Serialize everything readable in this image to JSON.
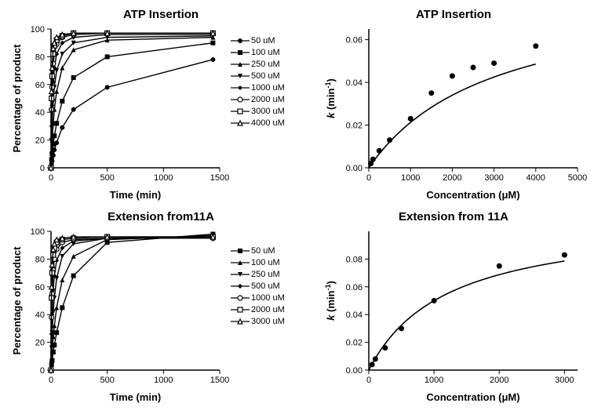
{
  "panels": {
    "tl": {
      "title": "ATP Insertion",
      "type": "line",
      "xlabel": "Time (min)",
      "ylabel": "Percentage of product",
      "xlim": [
        0,
        1500
      ],
      "ylim": [
        0,
        100
      ],
      "xtick_step": 500,
      "ytick_step": 20,
      "title_fontsize": 15,
      "label_fontsize": 13,
      "background_color": "#ffffff",
      "line_color": "#000000",
      "marker_size": 5,
      "series": [
        {
          "label": "50 uM",
          "marker": "circle-filled",
          "data": [
            [
              0,
              0
            ],
            [
              5,
              3
            ],
            [
              10,
              5
            ],
            [
              20,
              9
            ],
            [
              30,
              13
            ],
            [
              50,
              18
            ],
            [
              100,
              29
            ],
            [
              200,
              42
            ],
            [
              500,
              58
            ],
            [
              1440,
              78
            ]
          ]
        },
        {
          "label": "100 uM",
          "marker": "square-filled",
          "data": [
            [
              0,
              0
            ],
            [
              5,
              6
            ],
            [
              10,
              10
            ],
            [
              20,
              17
            ],
            [
              30,
              23
            ],
            [
              50,
              32
            ],
            [
              100,
              48
            ],
            [
              200,
              65
            ],
            [
              500,
              80
            ],
            [
              1440,
              90
            ]
          ]
        },
        {
          "label": "250 uM",
          "marker": "triangle-filled",
          "data": [
            [
              0,
              0
            ],
            [
              5,
              12
            ],
            [
              10,
              20
            ],
            [
              20,
              32
            ],
            [
              30,
              42
            ],
            [
              50,
              55
            ],
            [
              100,
              72
            ],
            [
              200,
              85
            ],
            [
              500,
              92
            ],
            [
              1440,
              94
            ]
          ]
        },
        {
          "label": "500 uM",
          "marker": "inverted-triangle-filled",
          "data": [
            [
              0,
              0
            ],
            [
              5,
              20
            ],
            [
              10,
              32
            ],
            [
              20,
              48
            ],
            [
              30,
              58
            ],
            [
              50,
              70
            ],
            [
              100,
              82
            ],
            [
              200,
              90
            ],
            [
              500,
              94
            ],
            [
              1440,
              95
            ]
          ]
        },
        {
          "label": "1000 uM",
          "marker": "diamond-filled",
          "data": [
            [
              0,
              0
            ],
            [
              5,
              30
            ],
            [
              10,
              45
            ],
            [
              20,
              62
            ],
            [
              30,
              72
            ],
            [
              50,
              82
            ],
            [
              100,
              90
            ],
            [
              200,
              94
            ],
            [
              500,
              96
            ],
            [
              1440,
              96
            ]
          ]
        },
        {
          "label": "2000 uM",
          "marker": "circle-open",
          "data": [
            [
              0,
              0
            ],
            [
              5,
              42
            ],
            [
              10,
              58
            ],
            [
              20,
              75
            ],
            [
              30,
              82
            ],
            [
              50,
              89
            ],
            [
              100,
              94
            ],
            [
              200,
              96
            ],
            [
              500,
              97
            ],
            [
              1440,
              97
            ]
          ]
        },
        {
          "label": "3000 uM",
          "marker": "square-open",
          "data": [
            [
              0,
              0
            ],
            [
              5,
              50
            ],
            [
              10,
              66
            ],
            [
              20,
              82
            ],
            [
              30,
              88
            ],
            [
              50,
              92
            ],
            [
              100,
              95
            ],
            [
              200,
              97
            ],
            [
              500,
              97
            ],
            [
              1440,
              97
            ]
          ]
        },
        {
          "label": "4000 uM",
          "marker": "triangle-open",
          "data": [
            [
              0,
              0
            ],
            [
              5,
              55
            ],
            [
              10,
              72
            ],
            [
              20,
              86
            ],
            [
              30,
              90
            ],
            [
              50,
              94
            ],
            [
              100,
              96
            ],
            [
              200,
              97
            ],
            [
              500,
              97
            ],
            [
              1440,
              97
            ]
          ]
        }
      ]
    },
    "tr": {
      "title": "ATP Insertion",
      "type": "scatter-fit",
      "xlabel": "Concentration (μM)",
      "ylabel": "k (min⁻¹)",
      "ylabel_italic_k": true,
      "xlim": [
        0,
        5000
      ],
      "ylim": [
        0,
        0.065
      ],
      "xtick_step": 1000,
      "yticks": [
        0.0,
        0.02,
        0.04,
        0.06
      ],
      "background_color": "#ffffff",
      "point_color": "#000000",
      "marker_size": 6,
      "line_color": "#000000",
      "points": [
        [
          50,
          0.002
        ],
        [
          100,
          0.004
        ],
        [
          250,
          0.008
        ],
        [
          500,
          0.013
        ],
        [
          1000,
          0.023
        ],
        [
          1500,
          0.035
        ],
        [
          2000,
          0.043
        ],
        [
          2500,
          0.047
        ],
        [
          3000,
          0.049
        ],
        [
          4000,
          0.057
        ]
      ],
      "fit": {
        "type": "saturating",
        "vmax": 0.085,
        "km": 3000
      }
    },
    "bl": {
      "title": "Extension from11A",
      "type": "line",
      "xlabel": "Time (min)",
      "ylabel": "Percentage of product",
      "xlim": [
        0,
        1500
      ],
      "ylim": [
        0,
        100
      ],
      "xtick_step": 500,
      "ytick_step": 20,
      "title_fontsize": 15,
      "label_fontsize": 13,
      "background_color": "#ffffff",
      "line_color": "#000000",
      "marker_size": 5,
      "series": [
        {
          "label": "50 uM",
          "marker": "square-filled",
          "data": [
            [
              0,
              0
            ],
            [
              5,
              4
            ],
            [
              10,
              7
            ],
            [
              20,
              13
            ],
            [
              30,
              18
            ],
            [
              50,
              27
            ],
            [
              100,
              45
            ],
            [
              200,
              68
            ],
            [
              500,
              92
            ],
            [
              1440,
              98
            ]
          ]
        },
        {
          "label": "100 uM",
          "marker": "triangle-filled",
          "data": [
            [
              0,
              0
            ],
            [
              5,
              8
            ],
            [
              10,
              14
            ],
            [
              20,
              24
            ],
            [
              30,
              32
            ],
            [
              50,
              45
            ],
            [
              100,
              65
            ],
            [
              200,
              82
            ],
            [
              500,
              94
            ],
            [
              1440,
              97
            ]
          ]
        },
        {
          "label": "250 uM",
          "marker": "inverted-triangle-filled",
          "data": [
            [
              0,
              0
            ],
            [
              5,
              16
            ],
            [
              10,
              27
            ],
            [
              20,
              42
            ],
            [
              30,
              52
            ],
            [
              50,
              66
            ],
            [
              100,
              82
            ],
            [
              200,
              91
            ],
            [
              500,
              95
            ],
            [
              1440,
              96
            ]
          ]
        },
        {
          "label": "500 uM",
          "marker": "diamond-filled",
          "data": [
            [
              0,
              0
            ],
            [
              5,
              26
            ],
            [
              10,
              40
            ],
            [
              20,
              58
            ],
            [
              30,
              68
            ],
            [
              50,
              79
            ],
            [
              100,
              88
            ],
            [
              200,
              93
            ],
            [
              500,
              95
            ],
            [
              1440,
              95
            ]
          ]
        },
        {
          "label": "1000 uM",
          "marker": "circle-open",
          "data": [
            [
              0,
              0
            ],
            [
              5,
              38
            ],
            [
              10,
              55
            ],
            [
              20,
              72
            ],
            [
              30,
              80
            ],
            [
              50,
              87
            ],
            [
              100,
              92
            ],
            [
              200,
              94
            ],
            [
              500,
              95
            ],
            [
              1440,
              95
            ]
          ]
        },
        {
          "label": "2000 uM",
          "marker": "square-open",
          "data": [
            [
              0,
              0
            ],
            [
              5,
              52
            ],
            [
              10,
              70
            ],
            [
              20,
              83
            ],
            [
              30,
              88
            ],
            [
              50,
              92
            ],
            [
              100,
              94
            ],
            [
              200,
              95
            ],
            [
              500,
              96
            ],
            [
              1440,
              96
            ]
          ]
        },
        {
          "label": "3000 uM",
          "marker": "triangle-open",
          "data": [
            [
              0,
              0
            ],
            [
              5,
              60
            ],
            [
              10,
              76
            ],
            [
              20,
              87
            ],
            [
              30,
              91
            ],
            [
              50,
              94
            ],
            [
              100,
              95
            ],
            [
              200,
              96
            ],
            [
              500,
              96
            ],
            [
              1440,
              96
            ]
          ]
        }
      ]
    },
    "br": {
      "title": "Extension from 11A",
      "type": "scatter-fit",
      "xlabel": "Concentration (μM)",
      "ylabel": "k (min⁻¹)",
      "ylabel_italic_k": true,
      "xlim": [
        0,
        3200
      ],
      "ylim": [
        0,
        0.1
      ],
      "xticks": [
        0,
        1000,
        2000,
        3000
      ],
      "yticks": [
        0.0,
        0.02,
        0.04,
        0.06,
        0.08
      ],
      "background_color": "#ffffff",
      "point_color": "#000000",
      "marker_size": 6,
      "line_color": "#000000",
      "points": [
        [
          50,
          0.004
        ],
        [
          100,
          0.008
        ],
        [
          250,
          0.016
        ],
        [
          500,
          0.03
        ],
        [
          1000,
          0.05
        ],
        [
          2000,
          0.075
        ],
        [
          3000,
          0.083
        ]
      ],
      "fit": {
        "type": "saturating",
        "vmax": 0.11,
        "km": 1200
      }
    }
  }
}
